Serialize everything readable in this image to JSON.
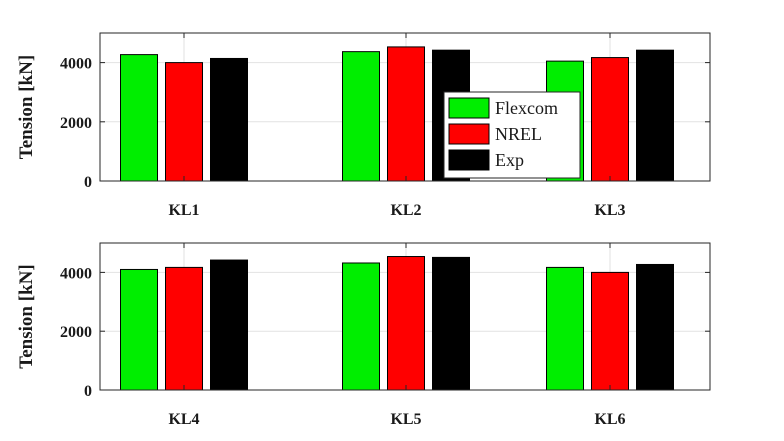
{
  "chart_data": [
    {
      "type": "bar",
      "categories": [
        "KL1",
        "KL2",
        "KL3"
      ],
      "series": [
        {
          "name": "Flexcom",
          "values": [
            4270,
            4370,
            4050
          ]
        },
        {
          "name": "NREL",
          "values": [
            4000,
            4530,
            4170
          ]
        },
        {
          "name": "Exp",
          "values": [
            4140,
            4420,
            4420
          ]
        }
      ],
      "ylabel": "Tension [kN]",
      "ylim": [
        0,
        5000
      ],
      "yticks": [
        "0",
        "2000",
        "4000"
      ],
      "grid": true,
      "legend": "center-right"
    },
    {
      "type": "bar",
      "categories": [
        "KL4",
        "KL5",
        "KL6"
      ],
      "series": [
        {
          "name": "Flexcom",
          "values": [
            4100,
            4320,
            4170
          ]
        },
        {
          "name": "NREL",
          "values": [
            4170,
            4540,
            4000
          ]
        },
        {
          "name": "Exp",
          "values": [
            4420,
            4510,
            4270
          ]
        }
      ],
      "ylabel": "Tension [kN]",
      "ylim": [
        0,
        5000
      ],
      "yticks": [
        "0",
        "2000",
        "4000"
      ],
      "grid": true
    }
  ],
  "colors": {
    "Flexcom": "#00ee00",
    "NREL": "#ff0000",
    "Exp": "#000000"
  }
}
